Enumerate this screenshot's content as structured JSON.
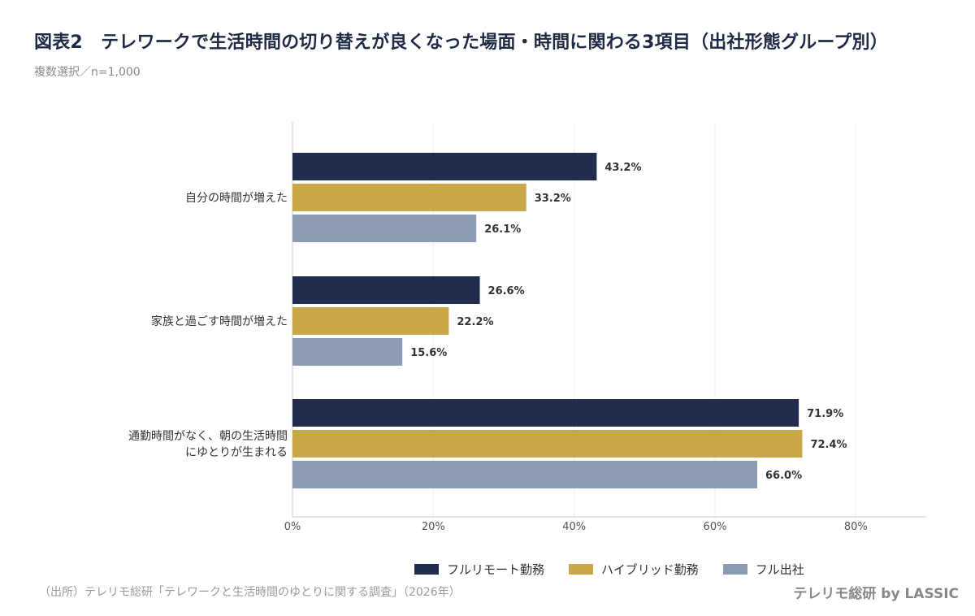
{
  "header": {
    "title": "図表2　テレワークで生活時間の切り替えが良くなった場面・時間に関わる3項目（出社形態グループ別）",
    "subtitle": "複数選択／n=1,000"
  },
  "footer": {
    "source": "（出所）テレリモ総研「テレワークと生活時間のゆとりに関する調査」（2026年）",
    "brand": "テレリモ総研 by LASSIC"
  },
  "colors": {
    "full_remote": "#222c4e",
    "hybrid": "#c9a84a",
    "full_office": "#8c9cb2",
    "grid": "#eeeeee",
    "axis": "#cccccc"
  },
  "chart_data": {
    "type": "bar",
    "orientation": "horizontal",
    "categories": [
      [
        "自分の時間が増えた"
      ],
      [
        "家族と過ごす時間が増えた"
      ],
      [
        "通勤時間がなく、朝の生活時間",
        "にゆとりが生まれる"
      ]
    ],
    "series": [
      {
        "name": "フルリモート勤務",
        "color": "#222c4e",
        "values": [
          43.2,
          26.6,
          71.9
        ],
        "labels": [
          "43.2%",
          "26.6%",
          "71.9%"
        ]
      },
      {
        "name": "ハイブリッド勤務",
        "color": "#c9a84a",
        "values": [
          33.2,
          22.2,
          72.4
        ],
        "labels": [
          "33.2%",
          "22.2%",
          "72.4%"
        ]
      },
      {
        "name": "フル出社",
        "color": "#8c9cb2",
        "values": [
          26.1,
          15.6,
          66.0
        ],
        "labels": [
          "26.1%",
          "15.6%",
          "66.0%"
        ]
      }
    ],
    "xlim": [
      0,
      90
    ],
    "xticks": [
      0,
      20,
      40,
      60,
      80
    ],
    "xtick_labels": [
      "0%",
      "20%",
      "40%",
      "60%",
      "80%"
    ],
    "grid": true,
    "legend_position": "bottom"
  }
}
